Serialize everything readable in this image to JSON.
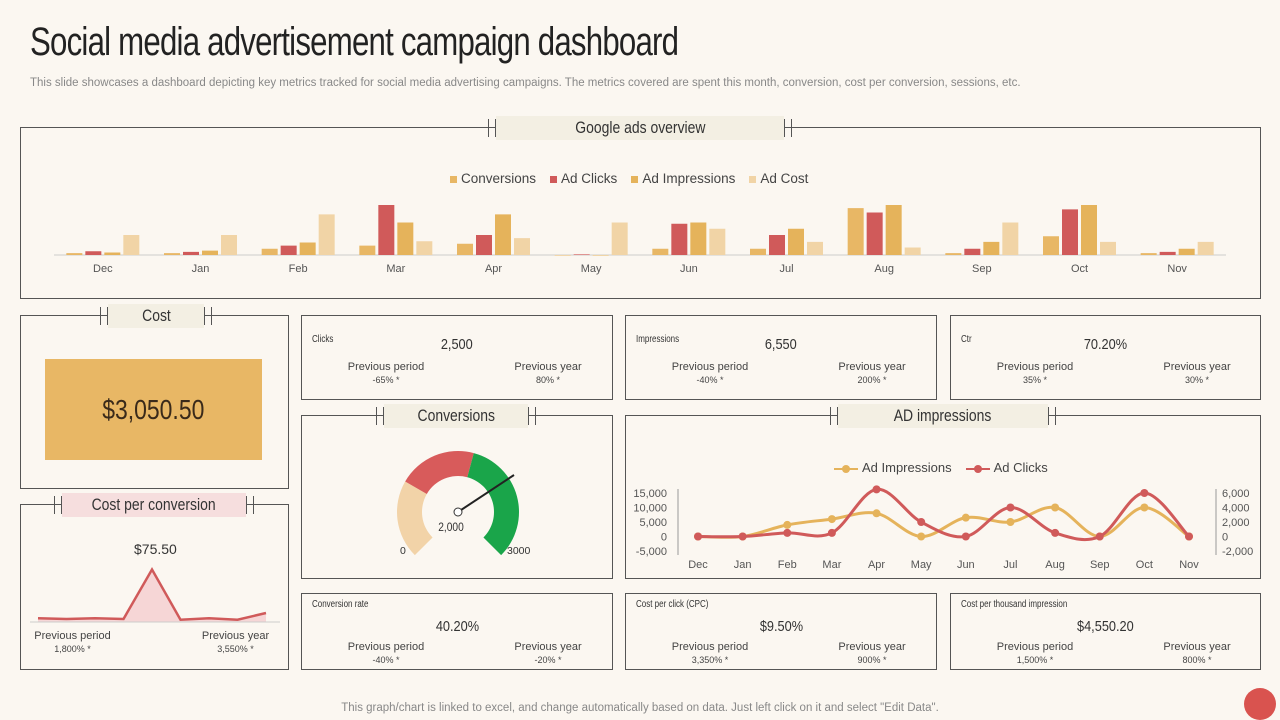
{
  "header": {
    "title": "Social media advertisement campaign dashboard",
    "subtitle": "This slide showcases a dashboard depicting key metrics tracked for social media advertising campaigns. The metrics covered are spent this month, conversion, cost per conversion, sessions, etc."
  },
  "footer": "This graph/chart is linked to excel, and change automatically based on data. Just left click on it and select \"Edit Data\".",
  "colors": {
    "conversions": "#e8b765",
    "ad_clicks": "#d05a5a",
    "ad_impressions": "#e5b35b",
    "ad_cost": "#f1d4a6",
    "accent_red": "#d9534f",
    "gauge_green": "#1aa54a",
    "gauge_red": "#d85b5b",
    "gauge_cream": "#f2d3a8"
  },
  "google_ads": {
    "title": "Google ads overview"
  },
  "cost": {
    "title": "Cost",
    "value": "$3,050.50"
  },
  "cost_per_conversion": {
    "title": "Cost per conversion",
    "value": "$75.50",
    "prev_period_label": "Previous period",
    "prev_period_value": "1,800% *",
    "prev_year_label": "Previous year",
    "prev_year_value": "3,550% *"
  },
  "kpis": {
    "clicks": {
      "title": "Clicks",
      "value": "2,500",
      "pp_label": "Previous period",
      "pp_value": "-65% *",
      "py_label": "Previous year",
      "py_value": "80% *"
    },
    "impressions": {
      "title": "Impressions",
      "value": "6,550",
      "pp_label": "Previous period",
      "pp_value": "-40% *",
      "py_label": "Previous year",
      "py_value": "200% *"
    },
    "ctr": {
      "title": "Ctr",
      "value": "70.20%",
      "pp_label": "Previous period",
      "pp_value": "35% *",
      "py_label": "Previous year",
      "py_value": "30% *"
    },
    "conversion_rate": {
      "title": "Conversion rate",
      "value": "40.20%",
      "pp_label": "Previous period",
      "pp_value": "-40% *",
      "py_label": "Previous year",
      "py_value": "-20% *"
    },
    "cpc": {
      "title": "Cost per click (CPC)",
      "value": "$9.50%",
      "pp_label": "Previous period",
      "pp_value": "3,350% *",
      "py_label": "Previous year",
      "py_value": "900% *"
    },
    "cpm": {
      "title": "Cost per thousand impression",
      "value": "$4,550.20",
      "pp_label": "Previous period",
      "pp_value": "1,500% *",
      "py_label": "Previous year",
      "py_value": "800% *"
    }
  },
  "conversions_gauge": {
    "title": "Conversions",
    "value": "2,000",
    "min_label": "0",
    "max_label": "3000"
  },
  "ad_impressions_panel": {
    "title": "AD impressions"
  },
  "chart_data": [
    {
      "type": "bar",
      "categories": [
        "Dec",
        "Jan",
        "Feb",
        "Mar",
        "Apr",
        "May",
        "Jun",
        "Jul",
        "Aug",
        "Sep",
        "Oct",
        "Nov"
      ],
      "legend_position": "top",
      "series": [
        {
          "name": "Conversions",
          "values": [
            3,
            3,
            10,
            15,
            18,
            0,
            10,
            10,
            75,
            3,
            30,
            3
          ]
        },
        {
          "name": "Ad Clicks",
          "values": [
            6,
            5,
            15,
            80,
            32,
            1,
            50,
            32,
            68,
            10,
            73,
            5
          ]
        },
        {
          "name": "Ad Impressions",
          "values": [
            4,
            7,
            20,
            52,
            65,
            0,
            52,
            42,
            80,
            21,
            80,
            10
          ]
        },
        {
          "name": "Ad Cost",
          "values": [
            32,
            32,
            65,
            22,
            27,
            52,
            42,
            21,
            12,
            52,
            21,
            21
          ]
        }
      ],
      "grid": false
    },
    {
      "type": "line",
      "categories": [
        "Dec",
        "Jan",
        "Feb",
        "Mar",
        "Apr",
        "May",
        "Jun",
        "Jul",
        "Aug",
        "Sep",
        "Oct",
        "Nov"
      ],
      "legend_position": "top",
      "series": [
        {
          "name": "Ad Impressions",
          "axis": "left",
          "values": [
            0,
            0,
            4000,
            6000,
            8000,
            0,
            6500,
            5000,
            10000,
            0,
            10000,
            0
          ]
        },
        {
          "name": "Ad Clicks",
          "axis": "right",
          "values": [
            0,
            0,
            500,
            500,
            6500,
            2000,
            0,
            4000,
            500,
            0,
            6000,
            0
          ]
        }
      ],
      "y_left_ticks": [
        "15,000",
        "10,000",
        "5,000",
        "0",
        "-5,000"
      ],
      "y_left_range": [
        -5000,
        15000
      ],
      "y_right_ticks": [
        "6,000",
        "4,000",
        "2,000",
        "0",
        "-2,000"
      ],
      "y_right_range": [
        -2000,
        6000
      ],
      "grid": false
    },
    {
      "type": "area",
      "series": [
        {
          "values": [
            5,
            4,
            5,
            4,
            70,
            3,
            5,
            3,
            12
          ]
        }
      ],
      "y_range": [
        0,
        80
      ]
    }
  ]
}
